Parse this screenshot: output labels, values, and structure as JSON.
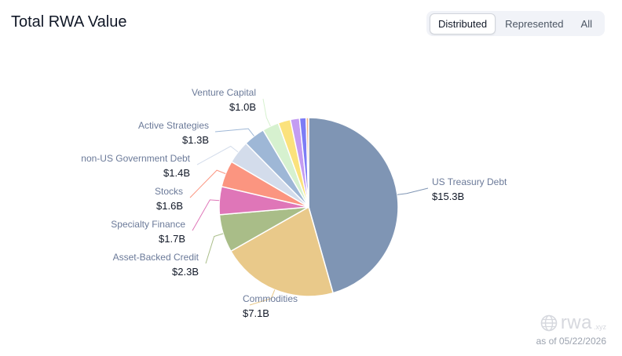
{
  "header": {
    "title": "Total RWA Value",
    "tabs": [
      {
        "label": "Distributed",
        "active": true
      },
      {
        "label": "Represented",
        "active": false
      },
      {
        "label": "All",
        "active": false
      }
    ]
  },
  "footer": {
    "logo_text": "rwa",
    "logo_tld": ".xyz",
    "as_of": "as of 05/22/2026"
  },
  "chart_data": {
    "type": "pie",
    "title": "Total RWA Value",
    "slices": [
      {
        "name": "US Treasury Debt",
        "label": "$15.3B",
        "value": 15.3,
        "color": "#7f95b4",
        "labeled": true
      },
      {
        "name": "Commodities",
        "label": "$7.1B",
        "value": 7.1,
        "color": "#e9c98a",
        "labeled": true
      },
      {
        "name": "Asset-Backed Credit",
        "label": "$2.3B",
        "value": 2.3,
        "color": "#a9bd88",
        "labeled": true
      },
      {
        "name": "Specialty Finance",
        "label": "$1.7B",
        "value": 1.7,
        "color": "#df76b8",
        "labeled": true
      },
      {
        "name": "Stocks",
        "label": "$1.6B",
        "value": 1.6,
        "color": "#fb9580",
        "labeled": true
      },
      {
        "name": "non-US Government Debt",
        "label": "$1.4B",
        "value": 1.4,
        "color": "#d3dceb",
        "labeled": true
      },
      {
        "name": "Active Strategies",
        "label": "$1.3B",
        "value": 1.3,
        "color": "#9eb7d6",
        "labeled": true
      },
      {
        "name": "Venture Capital",
        "label": "$1.0B",
        "value": 1.0,
        "color": "#d6f1cf",
        "labeled": true
      },
      {
        "name": "",
        "label": "",
        "value": 0.75,
        "color": "#fbe27c",
        "labeled": false
      },
      {
        "name": "",
        "label": "",
        "value": 0.55,
        "color": "#c49cf2",
        "labeled": false
      },
      {
        "name": "",
        "label": "",
        "value": 0.4,
        "color": "#7c7cf5",
        "labeled": false
      },
      {
        "name": "",
        "label": "",
        "value": 0.15,
        "color": "#f0b58a",
        "labeled": false
      }
    ]
  }
}
